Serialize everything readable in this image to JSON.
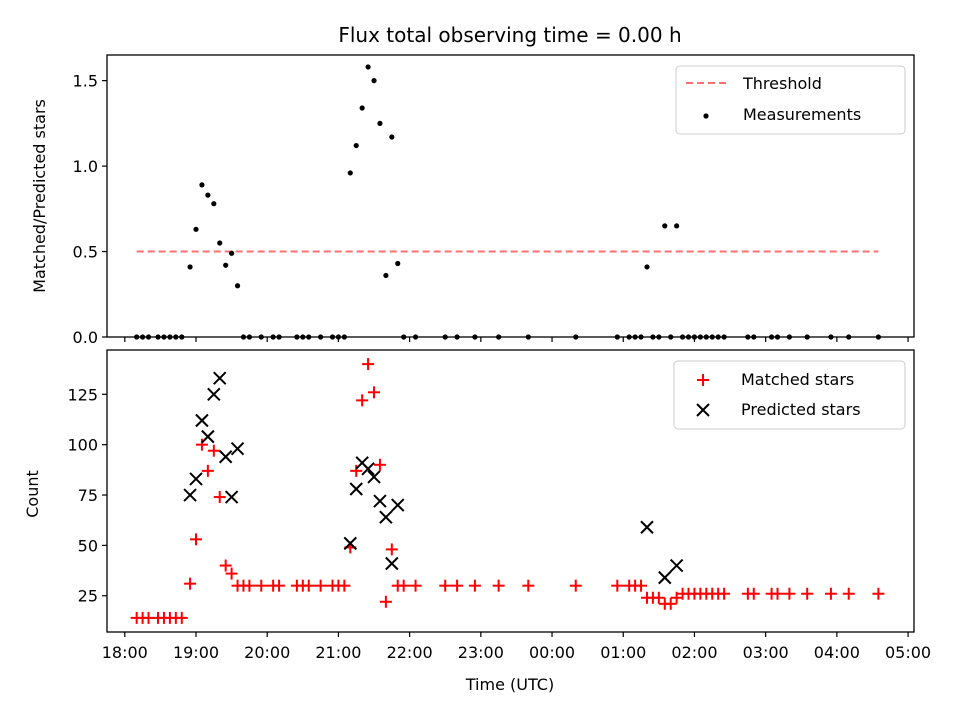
{
  "chart_data": [
    {
      "type": "scatter",
      "title": "Flux total observing time = 0.00 h",
      "xlabel": "",
      "ylabel": "Matched/Predicted stars",
      "ylim": [
        0,
        1.65
      ],
      "yticks": [
        "0.0",
        "0.5",
        "1.0",
        "1.5"
      ],
      "yticks_values": [
        0,
        0.5,
        1.0,
        1.5
      ],
      "legend": "upper right",
      "threshold": {
        "name": "Threshold",
        "value": 0.5,
        "x_start": "18:10",
        "x_end": "04:35",
        "color": "#ff7070"
      },
      "series": [
        {
          "name": "Measurements",
          "marker": "dot",
          "color": "#000000",
          "points": [
            [
              "18:10",
              0
            ],
            [
              "18:15",
              0
            ],
            [
              "18:20",
              0
            ],
            [
              "18:28",
              0
            ],
            [
              "18:33",
              0
            ],
            [
              "18:38",
              0
            ],
            [
              "18:43",
              0
            ],
            [
              "18:48",
              0
            ],
            [
              "18:55",
              0.41
            ],
            [
              "19:00",
              0.63
            ],
            [
              "19:05",
              0.89
            ],
            [
              "19:10",
              0.83
            ],
            [
              "19:15",
              0.78
            ],
            [
              "19:20",
              0.55
            ],
            [
              "19:25",
              0.42
            ],
            [
              "19:30",
              0.49
            ],
            [
              "19:35",
              0.3
            ],
            [
              "19:40",
              0
            ],
            [
              "19:45",
              0
            ],
            [
              "19:55",
              0
            ],
            [
              "20:05",
              0
            ],
            [
              "20:10",
              0
            ],
            [
              "20:25",
              0
            ],
            [
              "20:30",
              0
            ],
            [
              "20:35",
              0
            ],
            [
              "20:45",
              0
            ],
            [
              "20:55",
              0
            ],
            [
              "21:00",
              0
            ],
            [
              "21:05",
              0
            ],
            [
              "21:10",
              0.96
            ],
            [
              "21:15",
              1.12
            ],
            [
              "21:20",
              1.34
            ],
            [
              "21:25",
              1.58
            ],
            [
              "21:30",
              1.5
            ],
            [
              "21:35",
              1.25
            ],
            [
              "21:40",
              0.36
            ],
            [
              "21:45",
              1.17
            ],
            [
              "21:50",
              0.43
            ],
            [
              "21:55",
              0
            ],
            [
              "22:05",
              0
            ],
            [
              "22:30",
              0
            ],
            [
              "22:40",
              0
            ],
            [
              "22:55",
              0
            ],
            [
              "23:15",
              0
            ],
            [
              "23:40",
              0
            ],
            [
              "00:20",
              0
            ],
            [
              "00:55",
              0
            ],
            [
              "01:05",
              0
            ],
            [
              "01:10",
              0
            ],
            [
              "01:15",
              0
            ],
            [
              "01:20",
              0.41
            ],
            [
              "01:25",
              0
            ],
            [
              "01:30",
              0
            ],
            [
              "01:35",
              0.65
            ],
            [
              "01:40",
              0
            ],
            [
              "01:45",
              0.65
            ],
            [
              "01:50",
              0
            ],
            [
              "01:55",
              0
            ],
            [
              "02:00",
              0
            ],
            [
              "02:05",
              0
            ],
            [
              "02:10",
              0
            ],
            [
              "02:15",
              0
            ],
            [
              "02:20",
              0
            ],
            [
              "02:25",
              0
            ],
            [
              "02:45",
              0
            ],
            [
              "02:50",
              0
            ],
            [
              "03:05",
              0
            ],
            [
              "03:10",
              0
            ],
            [
              "03:20",
              0
            ],
            [
              "03:35",
              0
            ],
            [
              "03:55",
              0
            ],
            [
              "04:10",
              0
            ],
            [
              "04:35",
              0
            ]
          ]
        }
      ]
    },
    {
      "type": "scatter",
      "title": "",
      "xlabel": "Time (UTC)",
      "ylabel": "Count",
      "ylim": [
        7,
        147
      ],
      "yticks": [
        "25",
        "50",
        "75",
        "100",
        "125"
      ],
      "yticks_values": [
        25,
        50,
        75,
        100,
        125
      ],
      "xlim": [
        "17:45",
        "05:05"
      ],
      "xticks": [
        "18:00",
        "19:00",
        "20:00",
        "21:00",
        "22:00",
        "23:00",
        "00:00",
        "01:00",
        "02:00",
        "03:00",
        "04:00",
        "05:00"
      ],
      "legend": "upper right",
      "series": [
        {
          "name": "Matched stars",
          "marker": "plus",
          "color": "#ff0000",
          "points": [
            [
              "18:10",
              14
            ],
            [
              "18:15",
              14
            ],
            [
              "18:20",
              14
            ],
            [
              "18:28",
              14
            ],
            [
              "18:33",
              14
            ],
            [
              "18:38",
              14
            ],
            [
              "18:43",
              14
            ],
            [
              "18:48",
              14
            ],
            [
              "18:55",
              31
            ],
            [
              "19:00",
              53
            ],
            [
              "19:05",
              100
            ],
            [
              "19:10",
              87
            ],
            [
              "19:15",
              97
            ],
            [
              "19:20",
              74
            ],
            [
              "19:25",
              40
            ],
            [
              "19:30",
              36
            ],
            [
              "19:35",
              30
            ],
            [
              "19:40",
              30
            ],
            [
              "19:45",
              30
            ],
            [
              "19:55",
              30
            ],
            [
              "20:05",
              30
            ],
            [
              "20:10",
              30
            ],
            [
              "20:25",
              30
            ],
            [
              "20:30",
              30
            ],
            [
              "20:35",
              30
            ],
            [
              "20:45",
              30
            ],
            [
              "20:55",
              30
            ],
            [
              "21:00",
              30
            ],
            [
              "21:05",
              30
            ],
            [
              "21:10",
              49
            ],
            [
              "21:15",
              87
            ],
            [
              "21:20",
              122
            ],
            [
              "21:25",
              140
            ],
            [
              "21:30",
              126
            ],
            [
              "21:35",
              90
            ],
            [
              "21:40",
              22
            ],
            [
              "21:45",
              48
            ],
            [
              "21:50",
              30
            ],
            [
              "21:55",
              30
            ],
            [
              "22:05",
              30
            ],
            [
              "22:30",
              30
            ],
            [
              "22:40",
              30
            ],
            [
              "22:55",
              30
            ],
            [
              "23:15",
              30
            ],
            [
              "23:40",
              30
            ],
            [
              "00:20",
              30
            ],
            [
              "00:55",
              30
            ],
            [
              "01:05",
              30
            ],
            [
              "01:10",
              30
            ],
            [
              "01:15",
              30
            ],
            [
              "01:20",
              24
            ],
            [
              "01:25",
              24
            ],
            [
              "01:30",
              24
            ],
            [
              "01:35",
              21
            ],
            [
              "01:40",
              21
            ],
            [
              "01:45",
              24
            ],
            [
              "01:50",
              26
            ],
            [
              "01:55",
              26
            ],
            [
              "02:00",
              26
            ],
            [
              "02:05",
              26
            ],
            [
              "02:10",
              26
            ],
            [
              "02:15",
              26
            ],
            [
              "02:20",
              26
            ],
            [
              "02:25",
              26
            ],
            [
              "02:45",
              26
            ],
            [
              "02:50",
              26
            ],
            [
              "03:05",
              26
            ],
            [
              "03:10",
              26
            ],
            [
              "03:20",
              26
            ],
            [
              "03:35",
              26
            ],
            [
              "03:55",
              26
            ],
            [
              "04:10",
              26
            ],
            [
              "04:35",
              26
            ]
          ]
        },
        {
          "name": "Predicted stars",
          "marker": "x",
          "color": "#000000",
          "points": [
            [
              "18:55",
              75
            ],
            [
              "19:00",
              83
            ],
            [
              "19:05",
              112
            ],
            [
              "19:10",
              104
            ],
            [
              "19:15",
              125
            ],
            [
              "19:20",
              133
            ],
            [
              "19:25",
              94
            ],
            [
              "19:30",
              74
            ],
            [
              "19:35",
              98
            ],
            [
              "21:10",
              51
            ],
            [
              "21:15",
              78
            ],
            [
              "21:20",
              91
            ],
            [
              "21:25",
              88
            ],
            [
              "21:30",
              84
            ],
            [
              "21:35",
              72
            ],
            [
              "21:40",
              64
            ],
            [
              "21:45",
              41
            ],
            [
              "21:50",
              70
            ],
            [
              "01:20",
              59
            ],
            [
              "01:35",
              34
            ],
            [
              "01:45",
              40
            ]
          ]
        }
      ]
    }
  ]
}
